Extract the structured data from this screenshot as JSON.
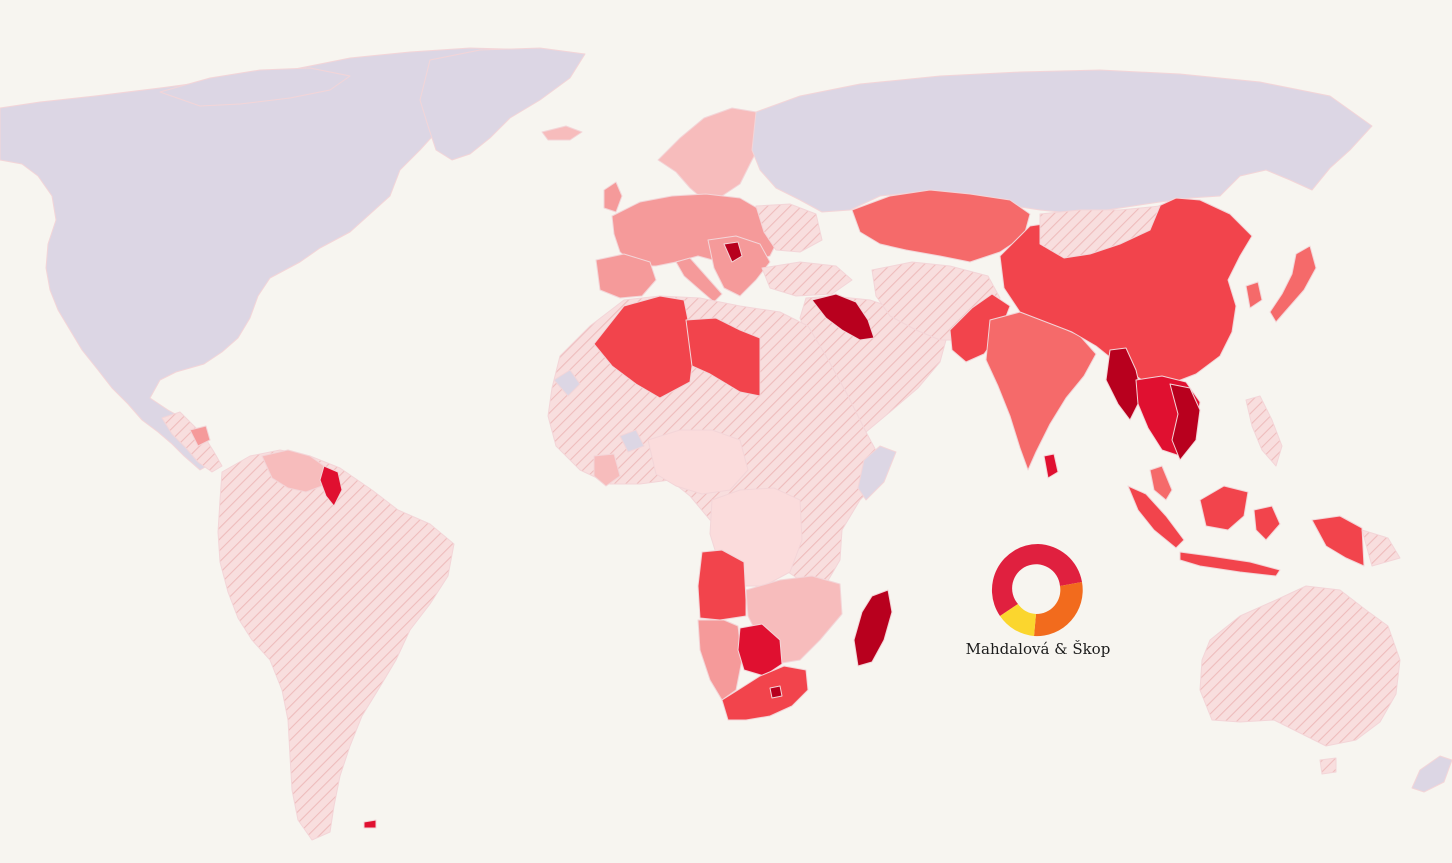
{
  "brand": {
    "name": "Mahdalová & Škop",
    "colors": {
      "ring_red": "#e0203f",
      "ring_orange": "#f26b1d",
      "ring_yellow": "#fbd62e"
    }
  },
  "legend_colors": {
    "background": "#f7f5f0",
    "no_data": "#dcd6e4",
    "level_1": "#fbdcdc",
    "level_2": "#f7bcbc",
    "level_3": "#f59a9a",
    "level_4": "#f56a6a",
    "level_5": "#f2444c",
    "level_6": "#e01030",
    "level_7": "#b8001e"
  }
}
